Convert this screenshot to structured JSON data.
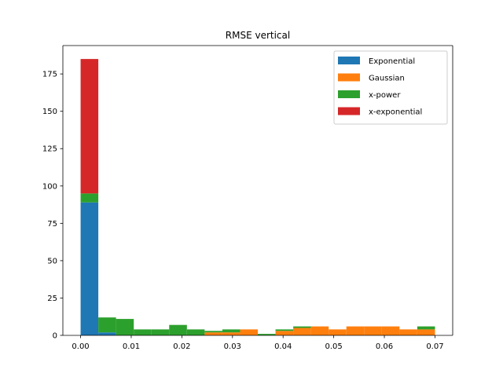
{
  "chart_data": {
    "type": "bar",
    "stacked": true,
    "histogram": true,
    "title": "RMSE vertical",
    "xlabel": "",
    "ylabel": "",
    "xlim": [
      -0.0035,
      0.0735
    ],
    "ylim": [
      0,
      194
    ],
    "xticks": [
      0.0,
      0.01,
      0.02,
      0.03,
      0.04,
      0.05,
      0.06,
      0.07
    ],
    "xtick_labels": [
      "0.00",
      "0.01",
      "0.02",
      "0.03",
      "0.04",
      "0.05",
      "0.06",
      "0.07"
    ],
    "yticks": [
      0,
      25,
      50,
      75,
      100,
      125,
      150,
      175
    ],
    "ytick_labels": [
      "0",
      "25",
      "50",
      "75",
      "100",
      "125",
      "150",
      "175"
    ],
    "bin_edges": [
      0.0,
      0.0035,
      0.007,
      0.0105,
      0.014,
      0.0175,
      0.021,
      0.0245,
      0.028,
      0.0315,
      0.035,
      0.0385,
      0.042,
      0.0455,
      0.049,
      0.0525,
      0.056,
      0.0595,
      0.063,
      0.0665,
      0.07
    ],
    "series": [
      {
        "name": "Exponential",
        "color": "#1f77b4",
        "values": [
          89,
          2,
          0,
          0,
          0,
          0,
          0,
          0,
          0,
          0,
          0,
          0,
          0,
          0,
          0,
          0,
          0,
          0,
          0,
          0
        ]
      },
      {
        "name": "Gaussian",
        "color": "#ff7f0e",
        "values": [
          0,
          0,
          0,
          0,
          0,
          0,
          0,
          2,
          2,
          4,
          0,
          3,
          5,
          6,
          4,
          6,
          6,
          6,
          4,
          4
        ]
      },
      {
        "name": "x-power",
        "color": "#2ca02c",
        "values": [
          6,
          10,
          11,
          4,
          4,
          7,
          4,
          1,
          2,
          0,
          1,
          1,
          1,
          0,
          0,
          0,
          0,
          0,
          0,
          2
        ]
      },
      {
        "name": "x-exponential",
        "color": "#d62728",
        "values": [
          90,
          0,
          0,
          0,
          0,
          0,
          0,
          0,
          0,
          0,
          0,
          0,
          0,
          0,
          0,
          0,
          0,
          0,
          0,
          0
        ]
      }
    ],
    "legend_position": "top-right",
    "grid": false
  }
}
